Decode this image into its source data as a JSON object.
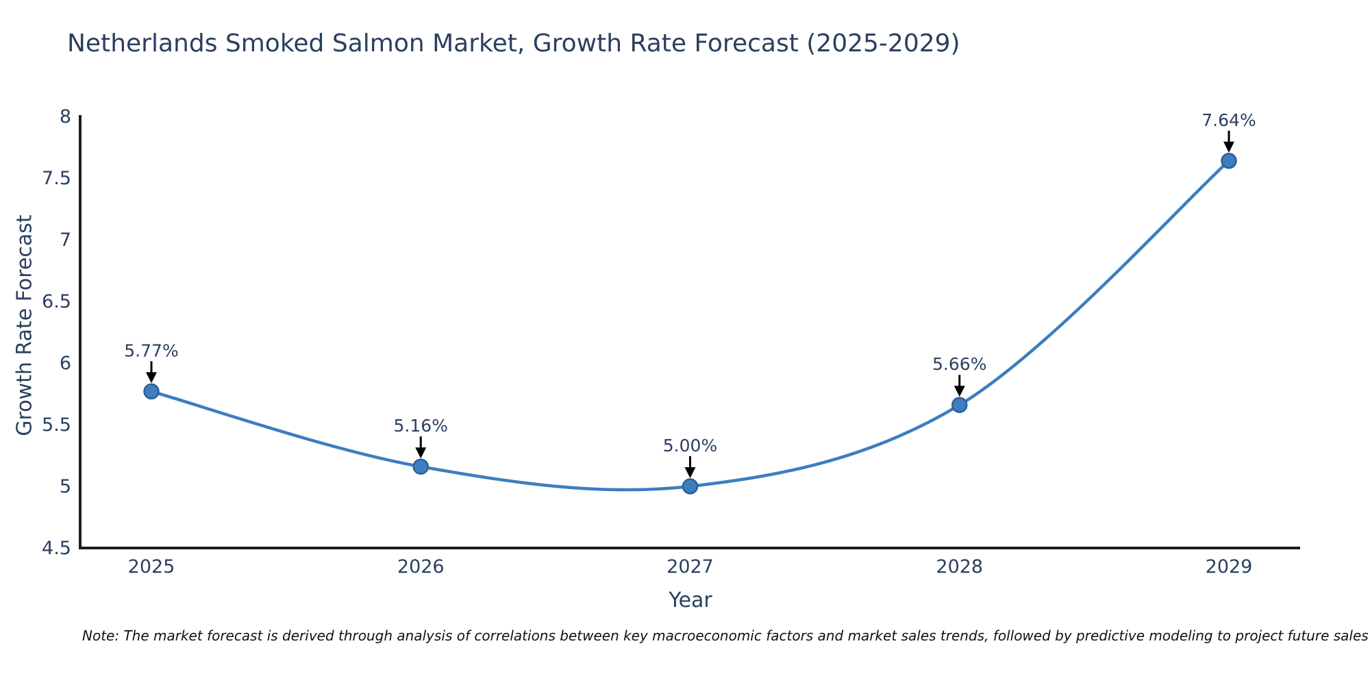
{
  "note": "Note: The market forecast is derived through analysis of correlations between key macroeconomic factors and market sales trends, followed by predictive modeling to project future sales",
  "chart_data": {
    "type": "line",
    "title": "Netherlands Smoked Salmon Market, Growth Rate Forecast (2025-2029)",
    "xlabel": "Year",
    "ylabel": "Growth Rate Forecast",
    "categories": [
      "2025",
      "2026",
      "2027",
      "2028",
      "2029"
    ],
    "series": [
      {
        "name": "Growth Rate Forecast",
        "values": [
          5.77,
          5.16,
          5.0,
          5.66,
          7.64
        ],
        "point_labels": [
          "5.77%",
          "5.16%",
          "5.00%",
          "5.66%",
          "7.64%"
        ]
      }
    ],
    "ylim": [
      4.5,
      8
    ],
    "ytick_values": [
      4.5,
      5,
      5.5,
      6,
      6.5,
      7,
      7.5,
      8
    ],
    "ytick_labels": [
      "4.5",
      "5",
      "5.5",
      "6",
      "6.5",
      "7",
      "7.5",
      "8"
    ],
    "line_shape": "spline",
    "grid": false,
    "legend": "none",
    "annotations_have_arrows": true,
    "colors": {
      "line": "#3c7ebf",
      "marker_fill": "#3c7ebf",
      "marker_edge": "#2b5f98",
      "axis_line": "#1d1d1d",
      "text": "#2a3f5f",
      "arrow": "#000000",
      "background": "#ffffff",
      "note_text": "#111111"
    }
  }
}
